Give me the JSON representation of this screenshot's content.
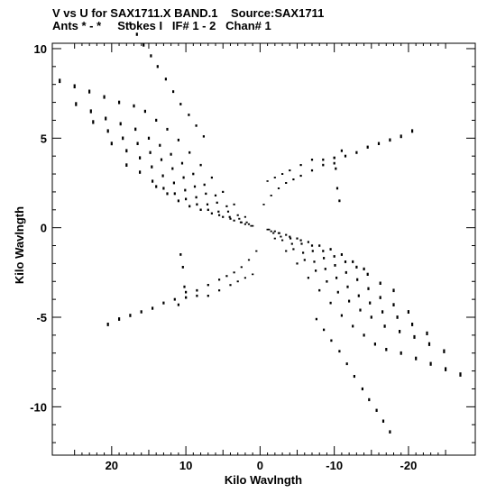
{
  "header": {
    "title_line1": "V vs U for SAX1711.X BAND.1    Source:SAX1711",
    "title_line2": "Ants * - *     Stokes I   IF# 1 - 2   Chan# 1"
  },
  "chart_data": {
    "type": "scatter",
    "title": "V vs U for SAX1711.X BAND.1    Source:SAX1711",
    "subtitle": "Ants * - *     Stokes I   IF# 1 - 2   Chan# 1",
    "xlabel": "Kilo Wavlngth",
    "ylabel": "Kilo Wavlngth",
    "xlim": [
      28,
      -29
    ],
    "ylim": [
      -12.7,
      10.3
    ],
    "x_reversed": true,
    "xticks": [
      20,
      10,
      0,
      -10,
      -20
    ],
    "yticks": [
      10,
      5,
      0,
      -5,
      -10
    ],
    "grid": false,
    "marker_color": "#000000",
    "series": [
      {
        "values": [
          [
            17.5,
            11.4
          ],
          [
            16.6,
            10.8
          ],
          [
            15.7,
            10.2
          ],
          [
            14.7,
            9.6
          ],
          [
            13.8,
            9.0
          ],
          [
            12.7,
            8.3
          ],
          [
            11.7,
            7.6
          ],
          [
            10.7,
            6.9
          ],
          [
            9.6,
            6.3
          ],
          [
            8.6,
            5.7
          ],
          [
            7.6,
            5.1
          ]
        ],
        "mirror": true
      },
      {
        "values": [
          [
            27.0,
            8.2
          ],
          [
            25.0,
            7.9
          ],
          [
            23.0,
            7.6
          ],
          [
            21.0,
            7.3
          ],
          [
            19.0,
            7.0
          ],
          [
            17.0,
            6.8
          ],
          [
            15.5,
            6.5
          ],
          [
            14.0,
            6.0
          ],
          [
            12.5,
            5.5
          ],
          [
            11.0,
            4.9
          ],
          [
            9.5,
            4.2
          ],
          [
            8.0,
            3.5
          ],
          [
            6.5,
            2.8
          ],
          [
            5.0,
            2.0
          ],
          [
            3.5,
            1.3
          ],
          [
            2.0,
            0.6
          ]
        ],
        "mirror": true
      },
      {
        "values": [
          [
            24.8,
            6.9
          ],
          [
            22.8,
            6.5
          ],
          [
            20.8,
            6.1
          ],
          [
            18.8,
            5.8
          ],
          [
            16.8,
            5.5
          ],
          [
            15.0,
            5.0
          ],
          [
            13.5,
            4.6
          ],
          [
            12.0,
            4.1
          ],
          [
            10.5,
            3.6
          ],
          [
            9.0,
            3.0
          ],
          [
            7.5,
            2.4
          ],
          [
            6.0,
            1.8
          ],
          [
            4.5,
            1.2
          ],
          [
            3.0,
            0.7
          ],
          [
            1.8,
            0.3
          ]
        ],
        "mirror": true
      },
      {
        "values": [
          [
            22.5,
            5.9
          ],
          [
            20.5,
            5.4
          ],
          [
            18.5,
            5.0
          ],
          [
            16.5,
            4.7
          ],
          [
            14.8,
            4.2
          ],
          [
            13.3,
            3.8
          ],
          [
            11.8,
            3.3
          ],
          [
            10.3,
            2.8
          ],
          [
            8.8,
            2.3
          ],
          [
            7.3,
            1.9
          ],
          [
            5.8,
            1.4
          ],
          [
            4.3,
            0.9
          ],
          [
            2.8,
            0.5
          ],
          [
            1.5,
            0.2
          ]
        ],
        "mirror": true
      },
      {
        "values": [
          [
            20.0,
            4.7
          ],
          [
            18.0,
            4.3
          ],
          [
            16.2,
            3.9
          ],
          [
            14.6,
            3.4
          ],
          [
            13.1,
            2.9
          ],
          [
            11.6,
            2.5
          ],
          [
            10.1,
            2.1
          ],
          [
            8.6,
            1.7
          ],
          [
            7.1,
            1.3
          ],
          [
            5.6,
            0.9
          ],
          [
            4.1,
            0.6
          ],
          [
            2.6,
            0.3
          ],
          [
            1.2,
            0.1
          ]
        ],
        "mirror": true
      },
      {
        "values": [
          [
            18.0,
            3.5
          ],
          [
            16.2,
            3.1
          ],
          [
            14.5,
            2.6
          ],
          [
            13.0,
            2.2
          ],
          [
            11.5,
            1.9
          ],
          [
            10.0,
            1.6
          ],
          [
            8.5,
            1.3
          ],
          [
            7.0,
            1.0
          ],
          [
            5.5,
            0.7
          ],
          [
            4.0,
            0.5
          ],
          [
            2.5,
            0.3
          ],
          [
            1.0,
            0.1
          ]
        ],
        "mirror": true
      },
      {
        "values": [
          [
            14.0,
            2.3
          ],
          [
            12.5,
            1.9
          ],
          [
            11.0,
            1.5
          ],
          [
            9.5,
            1.2
          ],
          [
            8.0,
            1.0
          ],
          [
            6.5,
            0.8
          ],
          [
            5.0,
            0.6
          ],
          [
            3.5,
            0.4
          ],
          [
            2.0,
            0.2
          ]
        ],
        "mirror": true
      },
      {
        "values": [
          [
            1.0,
            -2.6
          ],
          [
            2.0,
            -2.8
          ],
          [
            3.0,
            -3.0
          ],
          [
            4.0,
            -3.2
          ],
          [
            5.5,
            -3.5
          ],
          [
            7.0,
            -3.8
          ],
          [
            8.5,
            -3.8
          ],
          [
            10.0,
            -3.9
          ],
          [
            11.5,
            -4.0
          ],
          [
            13.0,
            -4.2
          ],
          [
            14.5,
            -4.5
          ],
          [
            16.0,
            -4.7
          ],
          [
            17.5,
            -4.9
          ],
          [
            19.0,
            -5.1
          ],
          [
            20.5,
            -5.4
          ]
        ],
        "mirror": true
      },
      {
        "values": [
          [
            0.5,
            -1.3
          ],
          [
            1.5,
            -1.8
          ],
          [
            2.5,
            -2.2
          ],
          [
            3.5,
            -2.5
          ],
          [
            4.5,
            -2.7
          ],
          [
            5.5,
            -2.9
          ],
          [
            7.0,
            -3.2
          ],
          [
            8.5,
            -3.5
          ],
          [
            10.0,
            -3.9
          ],
          [
            11.0,
            -4.3
          ]
        ],
        "mirror": true
      },
      {
        "values": [
          [
            10.7,
            -1.5
          ],
          [
            10.4,
            -2.2
          ],
          [
            10.2,
            -3.3
          ],
          [
            10.0,
            -3.6
          ]
        ],
        "mirror": true
      }
    ]
  }
}
